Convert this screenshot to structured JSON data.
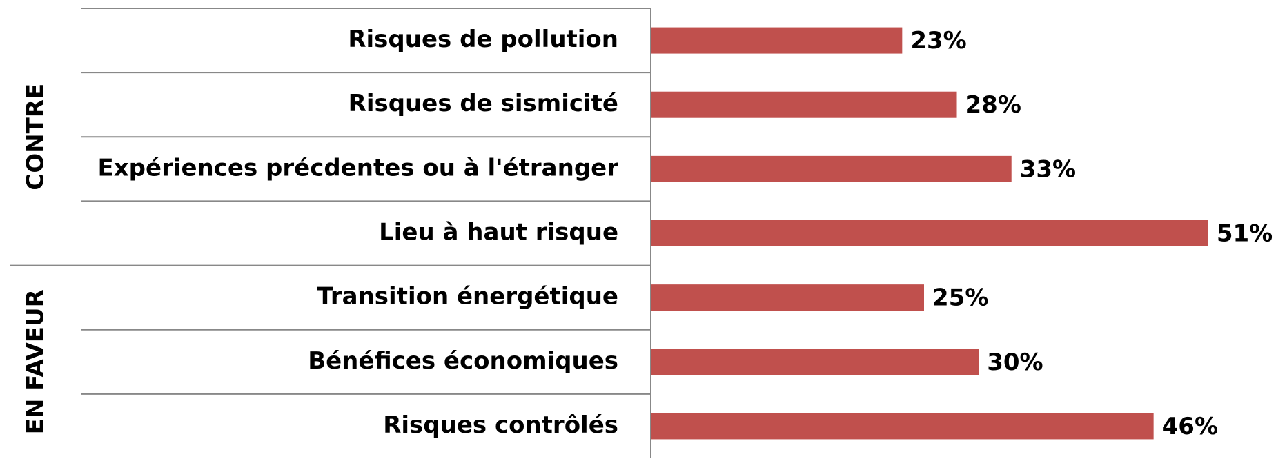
{
  "chart_data": {
    "type": "bar",
    "orientation": "horizontal",
    "color": "#c0504d",
    "groups": [
      {
        "label": "CONTRE",
        "categories": [
          "Risques de pollution",
          "Risques de sismicité",
          "Expériences précdentes ou à l'étranger",
          "Lieu à haut risque"
        ],
        "values": [
          23,
          28,
          33,
          51
        ],
        "value_labels": [
          "23%",
          "28%",
          "33%",
          "51%"
        ]
      },
      {
        "label": "EN FAVEUR",
        "categories": [
          "Transition énergétique",
          "Bénéfices économiques",
          "Risques contrôlés"
        ],
        "values": [
          25,
          30,
          46
        ],
        "value_labels": [
          "25%",
          "30%",
          "46%"
        ]
      }
    ]
  }
}
